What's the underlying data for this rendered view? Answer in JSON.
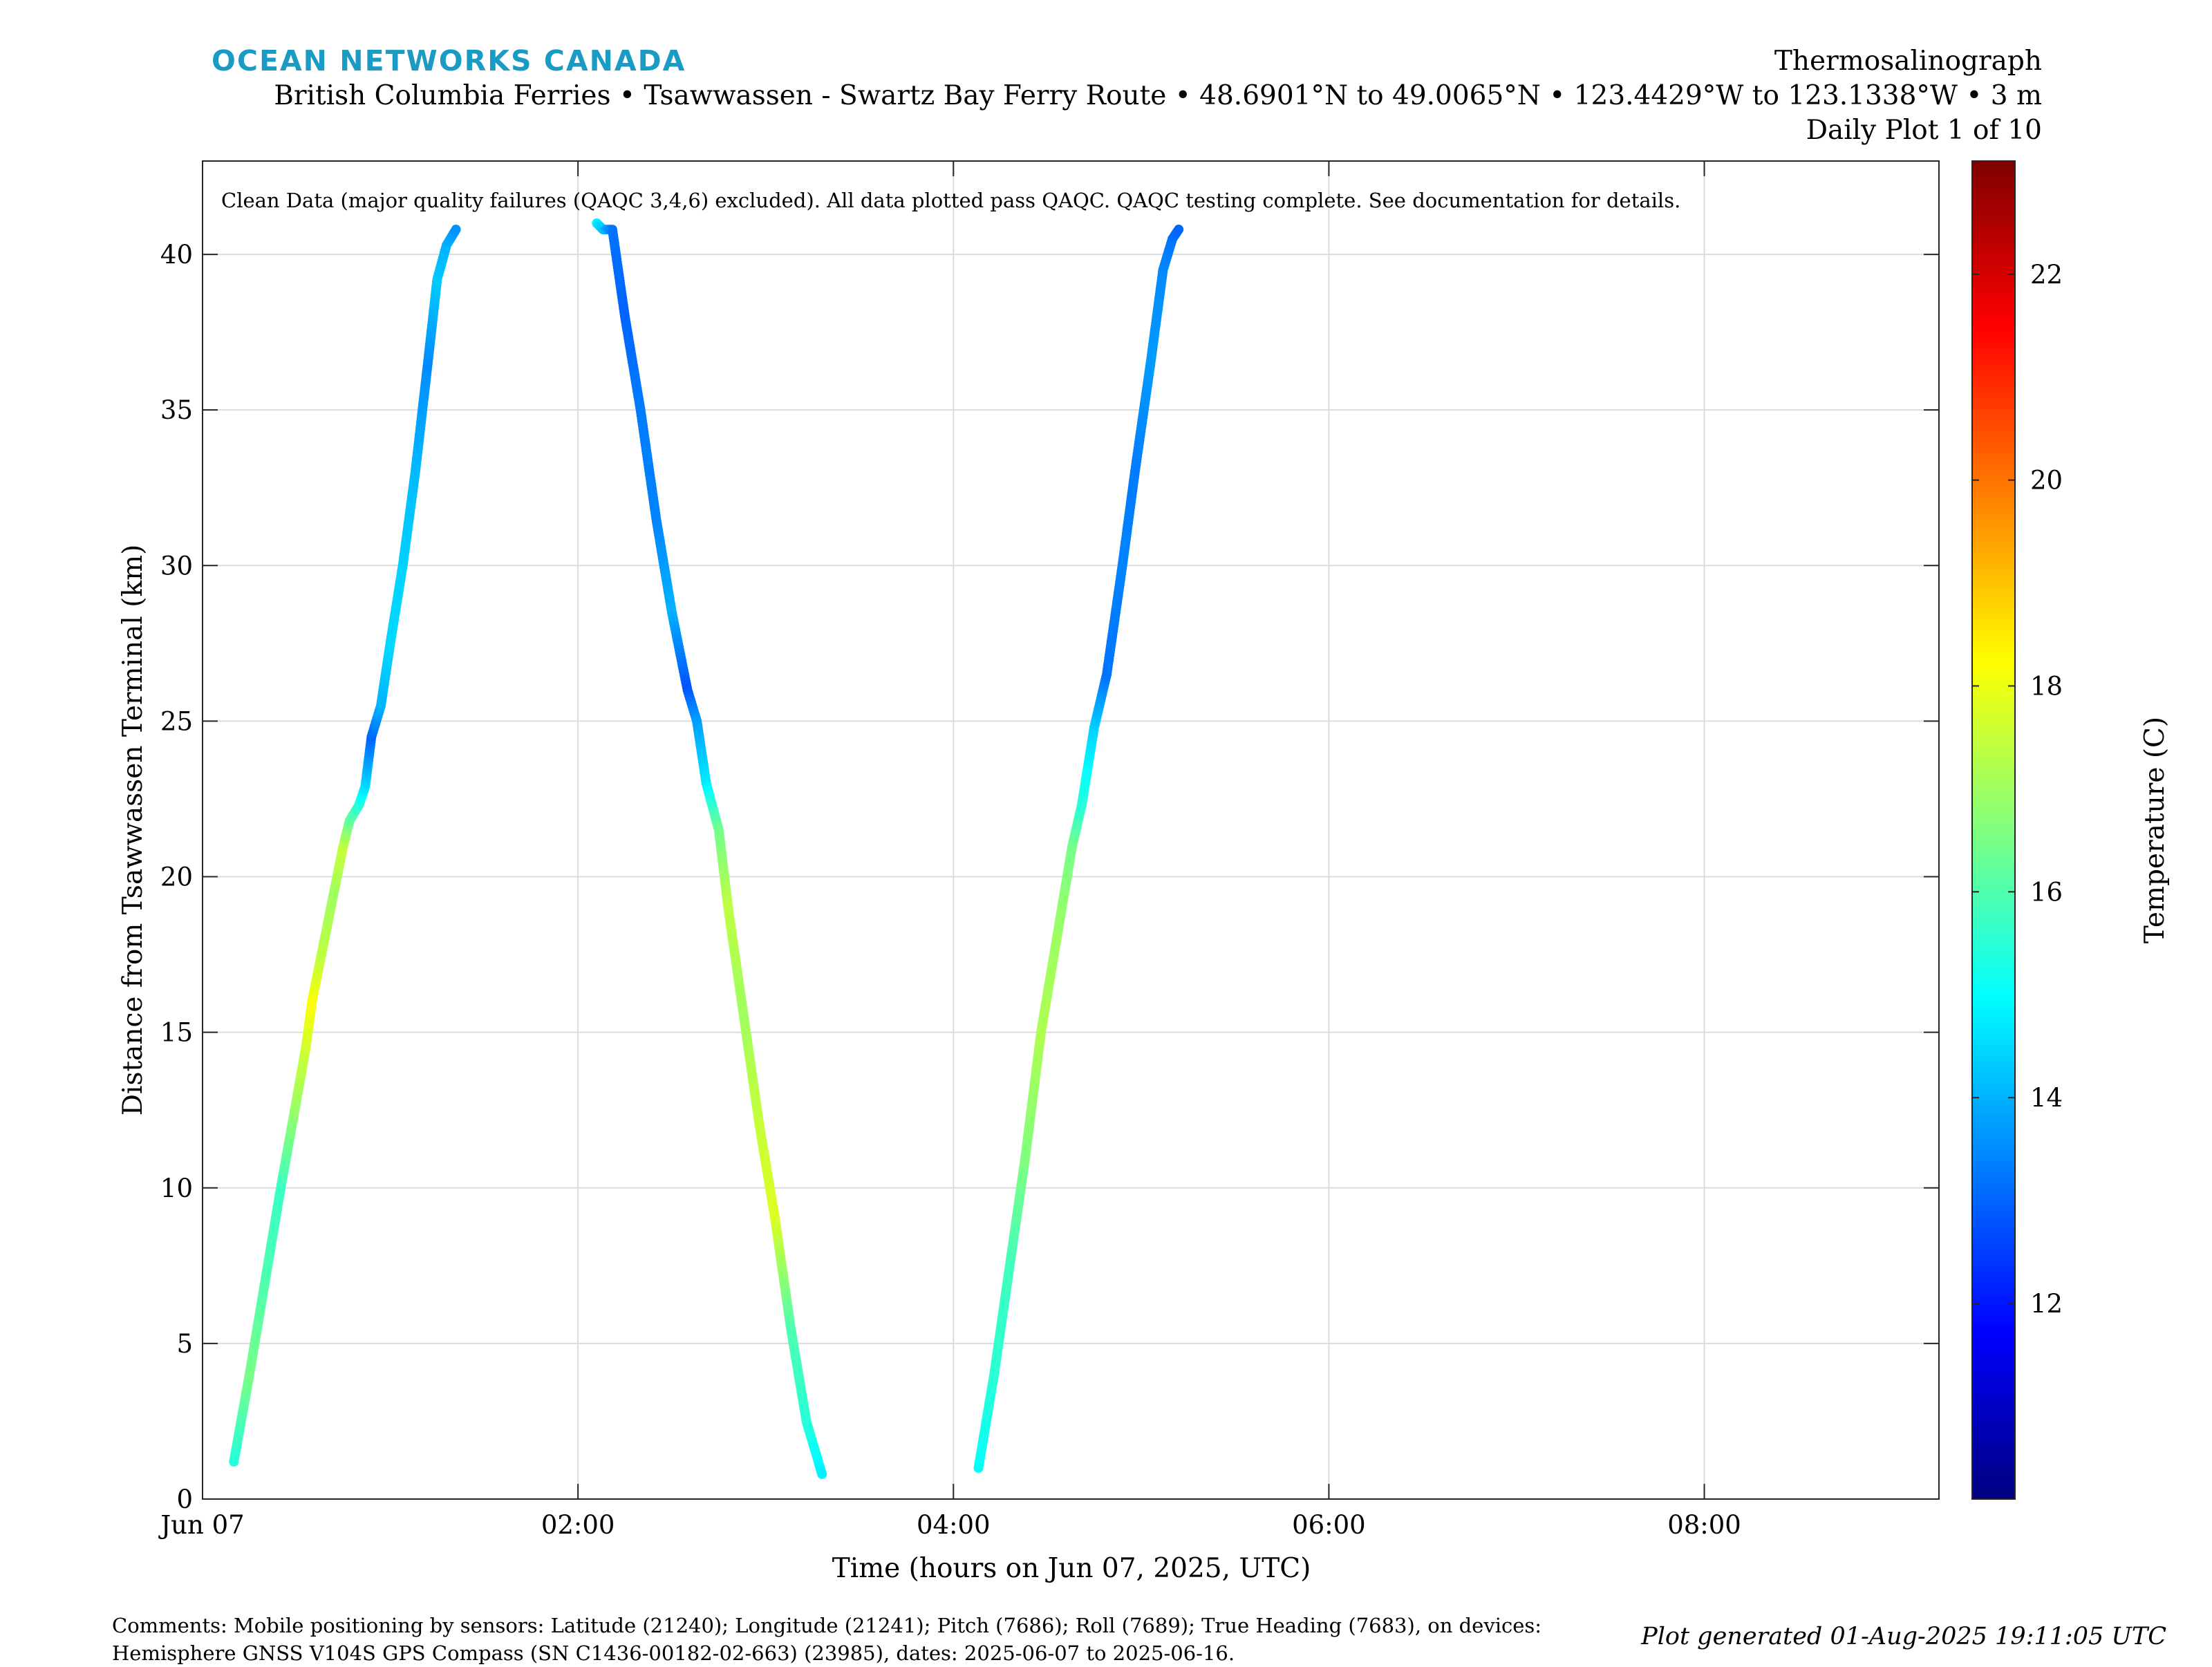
{
  "header": {
    "brand": "OCEAN NETWORKS CANADA",
    "instrument": "Thermosalinograph",
    "route": "British Columbia Ferries • Tsawwassen - Swartz Bay Ferry Route • 48.6901°N to 49.0065°N • 123.4429°W to 123.1338°W • 3 m",
    "plot_index": "Daily Plot 1 of 10"
  },
  "footer": {
    "comments_line1": "Comments: Mobile positioning by sensors: Latitude (21240); Longitude (21241); Pitch (7686); Roll (7689); True Heading (7683), on devices:",
    "comments_line2": "Hemisphere GNSS V104S GPS Compass (SN C1436-00182-02-663) (23985), dates: 2025-06-07 to 2025-06-16.",
    "generated": "Plot generated 01-Aug-2025 19:11:05 UTC"
  },
  "chart_data": {
    "type": "scatter",
    "annotation": "Clean Data (major quality failures (QAQC 3,4,6) excluded). All data plotted pass QAQC. QAQC testing complete. See documentation for details.",
    "xlabel": "Time (hours on Jun 07, 2025, UTC)",
    "ylabel": "Distance from Tsawwassen Terminal (km)",
    "xlim": [
      "2025-06-07T00:00",
      "2025-06-07T09:15"
    ],
    "ylim": [
      0,
      43
    ],
    "xticks": [
      {
        "t": "2025-06-07T00:00",
        "label": "Jun 07"
      },
      {
        "t": "2025-06-07T02:00",
        "label": "02:00"
      },
      {
        "t": "2025-06-07T04:00",
        "label": "04:00"
      },
      {
        "t": "2025-06-07T06:00",
        "label": "06:00"
      },
      {
        "t": "2025-06-07T08:00",
        "label": "08:00"
      }
    ],
    "yticks": [
      0,
      5,
      10,
      15,
      20,
      25,
      30,
      35,
      40
    ],
    "grid": true,
    "colorbar": {
      "label": "Temperature (C)",
      "colormap": "jet",
      "range": [
        10.1,
        23.1
      ],
      "ticks": [
        12,
        14,
        16,
        18,
        20,
        22
      ]
    },
    "series": [
      {
        "points": [
          {
            "t": "2025-06-07T00:10",
            "d": 1.2,
            "temp": 15.4
          },
          {
            "t": "2025-06-07T00:15",
            "d": 4.0,
            "temp": 16.5
          },
          {
            "t": "2025-06-07T00:20",
            "d": 7.0,
            "temp": 16.0
          },
          {
            "t": "2025-06-07T00:25",
            "d": 10.0,
            "temp": 15.7
          },
          {
            "t": "2025-06-07T00:30",
            "d": 12.8,
            "temp": 17.0
          },
          {
            "t": "2025-06-07T00:33",
            "d": 14.5,
            "temp": 17.6
          },
          {
            "t": "2025-06-07T00:35",
            "d": 16.0,
            "temp": 18.2
          },
          {
            "t": "2025-06-07T00:38",
            "d": 17.5,
            "temp": 17.4
          },
          {
            "t": "2025-06-07T00:42",
            "d": 19.5,
            "temp": 17.0
          },
          {
            "t": "2025-06-07T00:45",
            "d": 21.0,
            "temp": 17.5
          },
          {
            "t": "2025-06-07T00:47",
            "d": 21.8,
            "temp": 16.3
          },
          {
            "t": "2025-06-07T00:50",
            "d": 22.3,
            "temp": 15.5
          },
          {
            "t": "2025-06-07T00:52",
            "d": 22.9,
            "temp": 14.6
          },
          {
            "t": "2025-06-07T00:54",
            "d": 24.5,
            "temp": 13.0
          },
          {
            "t": "2025-06-07T00:57",
            "d": 25.5,
            "temp": 14.0
          },
          {
            "t": "2025-06-07T01:00",
            "d": 27.5,
            "temp": 14.5
          },
          {
            "t": "2025-06-07T01:04",
            "d": 30.0,
            "temp": 14.4
          },
          {
            "t": "2025-06-07T01:08",
            "d": 33.0,
            "temp": 14.1
          },
          {
            "t": "2025-06-07T01:12",
            "d": 36.5,
            "temp": 13.5
          },
          {
            "t": "2025-06-07T01:15",
            "d": 39.2,
            "temp": 14.3
          },
          {
            "t": "2025-06-07T01:18",
            "d": 40.3,
            "temp": 14.0
          },
          {
            "t": "2025-06-07T01:21",
            "d": 40.8,
            "temp": 13.6
          }
        ]
      },
      {
        "points": [
          {
            "t": "2025-06-07T02:06",
            "d": 41.0,
            "temp": 14.8
          },
          {
            "t": "2025-06-07T02:08",
            "d": 40.8,
            "temp": 14.2
          },
          {
            "t": "2025-06-07T02:11",
            "d": 40.8,
            "temp": 13.2
          },
          {
            "t": "2025-06-07T02:15",
            "d": 38.0,
            "temp": 13.0
          },
          {
            "t": "2025-06-07T02:20",
            "d": 35.0,
            "temp": 13.3
          },
          {
            "t": "2025-06-07T02:25",
            "d": 31.5,
            "temp": 13.4
          },
          {
            "t": "2025-06-07T02:30",
            "d": 28.5,
            "temp": 14.0
          },
          {
            "t": "2025-06-07T02:35",
            "d": 26.0,
            "temp": 12.8
          },
          {
            "t": "2025-06-07T02:38",
            "d": 25.0,
            "temp": 13.7
          },
          {
            "t": "2025-06-07T02:41",
            "d": 23.0,
            "temp": 14.7
          },
          {
            "t": "2025-06-07T02:45",
            "d": 21.5,
            "temp": 16.4
          },
          {
            "t": "2025-06-07T02:48",
            "d": 19.0,
            "temp": 17.4
          },
          {
            "t": "2025-06-07T02:53",
            "d": 15.5,
            "temp": 17.0
          },
          {
            "t": "2025-06-07T02:58",
            "d": 12.0,
            "temp": 17.5
          },
          {
            "t": "2025-06-07T03:03",
            "d": 9.0,
            "temp": 17.8
          },
          {
            "t": "2025-06-07T03:08",
            "d": 5.5,
            "temp": 16.0
          },
          {
            "t": "2025-06-07T03:13",
            "d": 2.5,
            "temp": 15.5
          },
          {
            "t": "2025-06-07T03:18",
            "d": 0.8,
            "temp": 14.8
          }
        ]
      },
      {
        "points": [
          {
            "t": "2025-06-07T04:08",
            "d": 1.0,
            "temp": 15.0
          },
          {
            "t": "2025-06-07T04:13",
            "d": 4.0,
            "temp": 15.5
          },
          {
            "t": "2025-06-07T04:18",
            "d": 7.5,
            "temp": 15.8
          },
          {
            "t": "2025-06-07T04:23",
            "d": 11.0,
            "temp": 16.6
          },
          {
            "t": "2025-06-07T04:28",
            "d": 15.0,
            "temp": 17.2
          },
          {
            "t": "2025-06-07T04:33",
            "d": 18.0,
            "temp": 17.0
          },
          {
            "t": "2025-06-07T04:38",
            "d": 21.0,
            "temp": 16.5
          },
          {
            "t": "2025-06-07T04:41",
            "d": 22.3,
            "temp": 15.5
          },
          {
            "t": "2025-06-07T04:45",
            "d": 24.8,
            "temp": 14.4
          },
          {
            "t": "2025-06-07T04:49",
            "d": 26.5,
            "temp": 13.2
          },
          {
            "t": "2025-06-07T04:54",
            "d": 30.0,
            "temp": 13.4
          },
          {
            "t": "2025-06-07T04:58",
            "d": 33.0,
            "temp": 13.3
          },
          {
            "t": "2025-06-07T05:03",
            "d": 36.5,
            "temp": 13.7
          },
          {
            "t": "2025-06-07T05:07",
            "d": 39.5,
            "temp": 13.5
          },
          {
            "t": "2025-06-07T05:10",
            "d": 40.5,
            "temp": 13.2
          },
          {
            "t": "2025-06-07T05:12",
            "d": 40.8,
            "temp": 13.0
          }
        ]
      }
    ]
  }
}
